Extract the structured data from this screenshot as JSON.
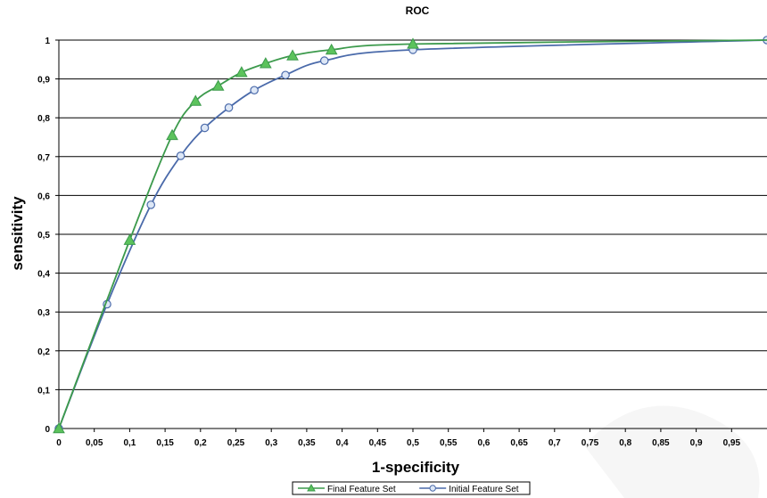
{
  "chart_data": {
    "type": "line",
    "title": "ROC",
    "xlabel": "1-specificity",
    "ylabel": "sensitivity",
    "xlim": [
      0,
      1
    ],
    "ylim": [
      0,
      1
    ],
    "x_ticks": [
      "0",
      "0,05",
      "0,1",
      "0,15",
      "0,2",
      "0,25",
      "0,3",
      "0,35",
      "0,4",
      "0,45",
      "0,5",
      "0,55",
      "0,6",
      "0,65",
      "0,7",
      "0,75",
      "0,8",
      "0,85",
      "0,9",
      "0,95"
    ],
    "y_ticks": [
      "0",
      "0,1",
      "0,2",
      "0,3",
      "0,4",
      "0,5",
      "0,6",
      "0,7",
      "0,8",
      "0,9",
      "1"
    ],
    "grid": "horizontal",
    "legend_position": "bottom",
    "series": [
      {
        "name": "Final Feature Set",
        "color": "#3c9a4c",
        "marker": "triangle",
        "points": [
          [
            0,
            0
          ],
          [
            0.1,
            0.485
          ],
          [
            0.16,
            0.755
          ],
          [
            0.193,
            0.843
          ],
          [
            0.225,
            0.882
          ],
          [
            0.258,
            0.917
          ],
          [
            0.292,
            0.94
          ],
          [
            0.33,
            0.96
          ],
          [
            0.385,
            0.975
          ],
          [
            0.5,
            0.99
          ],
          [
            1,
            1
          ]
        ],
        "markers": [
          [
            0,
            0
          ],
          [
            0.1,
            0.485
          ],
          [
            0.16,
            0.755
          ],
          [
            0.193,
            0.843
          ],
          [
            0.225,
            0.882
          ],
          [
            0.258,
            0.917
          ],
          [
            0.292,
            0.94
          ],
          [
            0.33,
            0.96
          ],
          [
            0.385,
            0.975
          ],
          [
            0.5,
            0.99
          ]
        ]
      },
      {
        "name": "Initial Feature Set",
        "color": "#4a6aaa",
        "marker": "circle",
        "points": [
          [
            0,
            0
          ],
          [
            0.068,
            0.32
          ],
          [
            0.13,
            0.576
          ],
          [
            0.172,
            0.702
          ],
          [
            0.206,
            0.774
          ],
          [
            0.24,
            0.826
          ],
          [
            0.276,
            0.871
          ],
          [
            0.32,
            0.91
          ],
          [
            0.375,
            0.947
          ],
          [
            0.5,
            0.975
          ],
          [
            1,
            1
          ]
        ],
        "markers": [
          [
            0,
            0
          ],
          [
            0.068,
            0.32
          ],
          [
            0.13,
            0.576
          ],
          [
            0.172,
            0.702
          ],
          [
            0.206,
            0.774
          ],
          [
            0.24,
            0.826
          ],
          [
            0.276,
            0.871
          ],
          [
            0.32,
            0.91
          ],
          [
            0.375,
            0.947
          ],
          [
            0.5,
            0.975
          ],
          [
            1,
            1
          ]
        ]
      }
    ]
  }
}
